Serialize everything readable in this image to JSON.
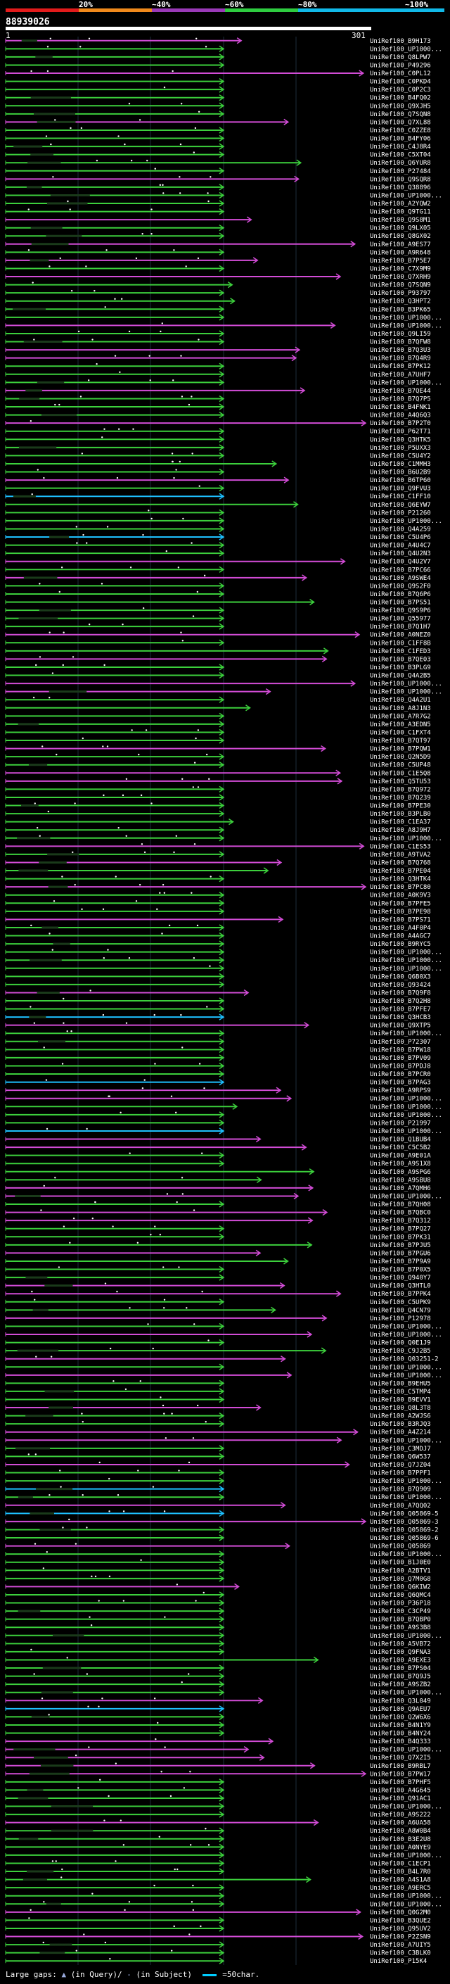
{
  "legend": {
    "scale_labels": [
      "20%",
      "~40%",
      "~60%",
      "~80%",
      "~100%"
    ],
    "colors": [
      "#e21b1b",
      "#f08a1c",
      "#9a3ab8",
      "#2ecc40",
      "#11b9e8"
    ]
  },
  "query": {
    "id": "88939026",
    "start_label": "1",
    "end_label": "301"
  },
  "footer": {
    "large_gaps_label": "Large gaps:",
    "gap_query_label": "(in Query)/",
    "gap_subject_label": "(in Subject)",
    "scale_label": "=50char."
  },
  "hits": [
    "UniRef100_B9H173",
    "UniRef100_UP1000...",
    "UniRef100_Q8LPW7",
    "UniRef100_P49296",
    "UniRef100_C0PL12",
    "UniRef100_C0PKD4",
    "UniRef100_C0P2C3",
    "UniRef100_B4FQ02",
    "UniRef100_Q9XJH5",
    "UniRef100_Q7SQN8",
    "UniRef100_Q7XL88",
    "UniRef100_C0ZZE8",
    "UniRef100_B4FY06",
    "UniRef100_C4J8R4",
    "UniRef100_C5XT04",
    "UniRef100_Q6YUR8",
    "UniRef100_P27484",
    "UniRef100_Q9SQR8",
    "UniRef100_Q38896",
    "UniRef100_UP1000...",
    "UniRef100_A2YQW2",
    "UniRef100_Q9TG11",
    "UniRef100_Q9S8M1",
    "UniRef100_Q9LX05",
    "UniRef100_Q8GX02",
    "UniRef100_A9ES77",
    "UniRef100_A9R648",
    "UniRef100_B7P5E7",
    "UniRef100_C7X9M9",
    "UniRef100_Q7XRH9",
    "UniRef100_Q7SQN9",
    "UniRef100_P93797",
    "UniRef100_Q3HPT2",
    "UniRef100_B3PK65",
    "UniRef100_UP1000...",
    "UniRef100_UP1000...",
    "UniRef100_Q9LI59",
    "UniRef100_B7QFW8",
    "UniRef100_B7Q3U3",
    "UniRef100_B7Q4R9",
    "UniRef100_B7PK12",
    "UniRef100_A7UHF7",
    "UniRef100_UP1000...",
    "UniRef100_B7QE44",
    "UniRef100_B7Q7P5",
    "UniRef100_B4FNK1",
    "UniRef100_A4Q6Q3",
    "UniRef100_B7P2T0",
    "UniRef100_P62T71",
    "UniRef100_Q3HTK5",
    "UniRef100_P5UXX3",
    "UniRef100_C5U4Y2",
    "UniRef100_C1MMH3",
    "UniRef100_B6U2B9",
    "UniRef100_B6TP60",
    "UniRef100_Q9FVU3",
    "UniRef100_C1FF10",
    "UniRef100_Q6EYW7",
    "UniRef100_P21260",
    "UniRef100_UP1000...",
    "UniRef100_Q4A259",
    "UniRef100_C5U4P6",
    "UniRef100_A4U4C7",
    "UniRef100_Q4U2N3",
    "UniRef100_Q4U2V7",
    "UniRef100_B7PC66",
    "UniRef100_A9SWE4",
    "UniRef100_Q9S2F0",
    "UniRef100_B7Q6P6",
    "UniRef100_B7PS51",
    "UniRef100_Q9S9P6",
    "UniRef100_Q55977",
    "UniRef100_B7Q1H7",
    "UniRef100_A0NEZ0",
    "UniRef100_C1FF8B",
    "UniRef100_C1FED3",
    "UniRef100_B7QE03",
    "UniRef100_B3PLG9",
    "UniRef100_Q4A2B5",
    "UniRef100_UP1000...",
    "UniRef100_UP1000...",
    "UniRef100_Q4A2U1",
    "UniRef100_A8J1N3",
    "UniRef100_A7R7G2",
    "UniRef100_A3EDN5",
    "UniRef100_C1FXT4",
    "UniRef100_B7QT97",
    "UniRef100_B7PQW1",
    "UniRef100_Q2N5D9",
    "UniRef100_C5UP48",
    "UniRef100_C1E5Q8",
    "UniRef100_Q5TU53",
    "UniRef100_B7Q972",
    "UniRef100_B7Q239",
    "UniRef100_B7PE30",
    "UniRef100_B3PLB0",
    "UniRef100_C1EA37",
    "UniRef100_A8J9H7",
    "UniRef100_UP1000...",
    "UniRef100_C1ES53",
    "UniRef100_A9TVA2",
    "UniRef100_B7Q768",
    "UniRef100_B7PE04",
    "UniRef100_Q3HTK4",
    "UniRef100_B7PC80",
    "UniRef100_A0K9V3",
    "UniRef100_B7PFE5",
    "UniRef100_B7PE98",
    "UniRef100_B7PS71",
    "UniRef100_A4F0P4",
    "UniRef100_A4AGC7",
    "UniRef100_B9RYC5",
    "UniRef100_UP1000...",
    "UniRef100_UP1000...",
    "UniRef100_UP1000...",
    "UniRef100_Q6B0X3",
    "UniRef100_Q93424",
    "UniRef100_B7Q9F8",
    "UniRef100_B7Q2H8",
    "UniRef100_B7PFE7",
    "UniRef100_Q3HCB3",
    "UniRef100_Q9XTP5",
    "UniRef100_UP1000...",
    "UniRef100_P72307",
    "UniRef100_B7PW18",
    "UniRef100_B7PV09",
    "UniRef100_B7PDJ8",
    "UniRef100_B7PCR0",
    "UniRef100_B7PAG3",
    "UniRef100_A9RPS9",
    "UniRef100_UP1000...",
    "UniRef100_UP1000...",
    "UniRef100_UP1000...",
    "UniRef100_P21997",
    "UniRef100_UP1000...",
    "UniRef100_Q1BUB4",
    "UniRef100_C5C5B2",
    "UniRef100_A9E01A",
    "UniRef100_A9S1X8",
    "UniRef100_A9SPG6",
    "UniRef100_A9SBU8",
    "UniRef100_A7QMH6",
    "UniRef100_UP1000...",
    "UniRef100_B7QH08",
    "UniRef100_B7QBC0",
    "UniRef100_B7Q312",
    "UniRef100_B7PQ27",
    "UniRef100_B7PK31",
    "UniRef100_B7PJU5",
    "UniRef100_B7PGU6",
    "UniRef100_B7P9A9",
    "UniRef100_B7P0X5",
    "UniRef100_Q940Y7",
    "UniRef100_Q3HTL0",
    "UniRef100_B7PPK4",
    "UniRef100_C5UPK9",
    "UniRef100_Q4CN79",
    "UniRef100_P12978",
    "UniRef100_UP1000...",
    "UniRef100_UP1000...",
    "UniRef100_Q0E1J9",
    "UniRef100_C9J2B5",
    "UniRef100_Q03251-2",
    "UniRef100_UP1000...",
    "UniRef100_UP1000...",
    "UniRef100_B9EHU5",
    "UniRef100_C5TMP4",
    "UniRef100_B9EVV1",
    "UniRef100_Q8L3T8",
    "UniRef100_A2WJS6",
    "UniRef100_B3RJQ3",
    "UniRef100_A4Z214",
    "UniRef100_UP1000...",
    "UniRef100_C3MDJ7",
    "UniRef100_Q6W537",
    "UniRef100_Q7JZ04",
    "UniRef100_B7PPF1",
    "UniRef100_UP1000...",
    "UniRef100_B7Q909",
    "UniRef100_UP1000...",
    "UniRef100_A7QQ02",
    "UniRef100_Q05869-5",
    "UniRef100_Q05869-3",
    "UniRef100_Q05869-2",
    "UniRef100_Q05869-6",
    "UniRef100_Q05869",
    "UniRef100_UP1000...",
    "UniRef100_B1J0E0",
    "UniRef100_A2BTV1",
    "UniRef100_Q7M0G8",
    "UniRef100_Q6KIW2",
    "UniRef100_Q6QMC4",
    "UniRef100_P36P18",
    "UniRef100_C3CP49",
    "UniRef100_B7QBP0",
    "UniRef100_A9S3B8",
    "UniRef100_UP1000...",
    "UniRef100_A5VB72",
    "UniRef100_Q9FNA3",
    "UniRef100_A9EXE3",
    "UniRef100_B7PS04",
    "UniRef100_B7Q9J5",
    "UniRef100_A9SZB2",
    "UniRef100_UP1000...",
    "UniRef100_Q3L049",
    "UniRef100_Q9AEU7",
    "UniRef100_Q2W6X6",
    "UniRef100_B4N1Y9",
    "UniRef100_B4NY24",
    "UniRef100_B4Q333",
    "UniRef100_UP1000...",
    "UniRef100_Q7X2I5",
    "UniRef100_B9RBL7",
    "UniRef100_B7PW17",
    "UniRef100_B7PHF5",
    "UniRef100_A4G645",
    "UniRef100_Q91AC1",
    "UniRef100_UP1000...",
    "UniRef100_A9S222",
    "UniRef100_A6UA58",
    "UniRef100_A8W0B4",
    "UniRef100_B3E2U8",
    "UniRef100_A0NYE9",
    "UniRef100_UP1000...",
    "UniRef100_C1ECP1",
    "UniRef100_B4L7R0",
    "UniRef100_A4S1A8",
    "UniRef100_A9ERC5",
    "UniRef100_UP1000...",
    "UniRef100_UP1000...",
    "UniRef100_Q0G2M0",
    "UniRef100_B3QUE2",
    "UniRef100_Q95UV2",
    "UniRef100_P2ZSN9",
    "UniRef100_A7UIY5",
    "UniRef100_C3BLK0",
    "UniRef100_P15K4"
  ]
}
